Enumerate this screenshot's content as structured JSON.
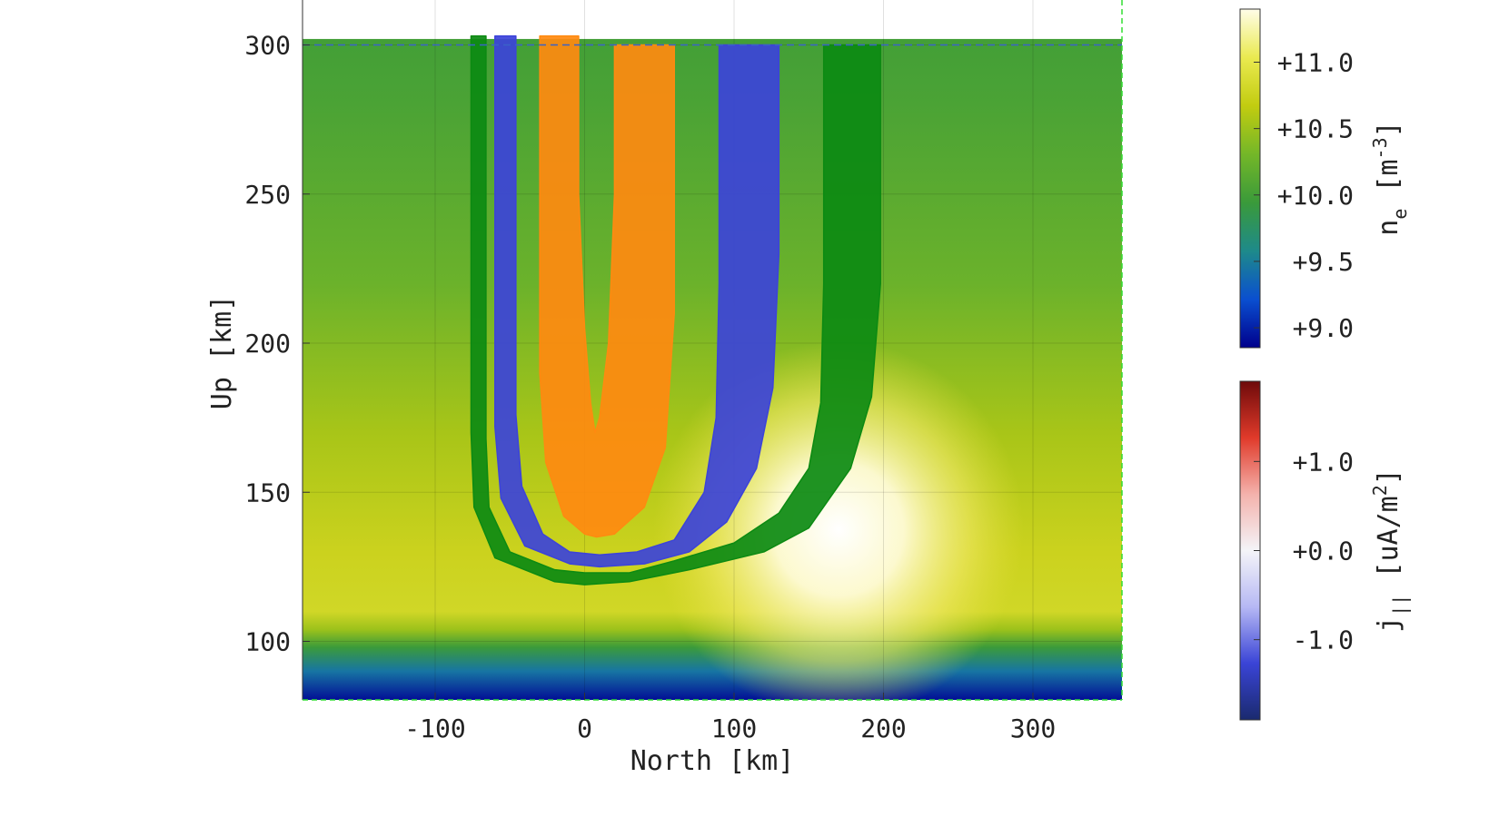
{
  "chart_data": {
    "type": "heatmap",
    "title": "",
    "xlabel": "North [km]",
    "ylabel": "Up [km]",
    "xlim": [
      -190,
      360
    ],
    "ylim": [
      80,
      315
    ],
    "x_ticks": [
      -100,
      0,
      100,
      200,
      300
    ],
    "y_ticks": [
      100,
      150,
      200,
      250,
      300
    ],
    "x_tick_labels": [
      "-100",
      "0",
      "100",
      "200",
      "300"
    ],
    "y_tick_labels": [
      "100",
      "150",
      "200",
      "250",
      "300"
    ],
    "grid": true,
    "colors": {
      "upper_boundary_line": "#3a62c8",
      "domain_edge_line": "#33dd33",
      "tube_outer_green": "#0c8a12",
      "tube_blue": "#3c43d9",
      "tube_orange": "#ff8a10",
      "tube_center_orange": "#c89a22",
      "tube_center_blue": "#7f7f8a",
      "tube_right_green": "#2a9012"
    },
    "background_field": {
      "quantity": "n_e",
      "altitude_profile_log10": [
        {
          "up": 80,
          "value": 8.9
        },
        {
          "up": 90,
          "value": 9.45
        },
        {
          "up": 98,
          "value": 9.95
        },
        {
          "up": 104,
          "value": 10.5
        },
        {
          "up": 110,
          "value": 10.8
        },
        {
          "up": 130,
          "value": 10.75
        },
        {
          "up": 170,
          "value": 10.55
        },
        {
          "up": 220,
          "value": 10.25
        },
        {
          "up": 280,
          "value": 10.05
        },
        {
          "up": 302,
          "value": 10.0
        }
      ],
      "enhancement_region": {
        "north_range": [
          40,
          240
        ],
        "up_range": [
          105,
          220
        ],
        "peak_value": 11.5
      }
    },
    "series": [
      {
        "name": "",
        "polarity": "upward current",
        "color": "#0c8a12",
        "outer_edge": {
          "north": [
            -76,
            -76,
            -74,
            -60,
            -20,
            0,
            30,
            70,
            120,
            150,
            178,
            192,
            198,
            198
          ],
          "up": [
            303,
            170,
            145,
            128,
            120,
            119,
            120,
            124,
            130,
            138,
            158,
            182,
            220,
            300
          ]
        },
        "inner_edge": {
          "north": [
            -66,
            -66,
            -64,
            -50,
            -20,
            0,
            30,
            60,
            100,
            130,
            150,
            158,
            160,
            160
          ],
          "up": [
            303,
            168,
            145,
            130,
            124,
            123,
            123,
            127,
            133,
            143,
            158,
            180,
            220,
            300
          ]
        }
      },
      {
        "name": "",
        "polarity": "downward current",
        "color": "#3c43d9",
        "outer_edge": {
          "north": [
            -60,
            -60,
            -56,
            -40,
            -10,
            10,
            40,
            70,
            95,
            115,
            126,
            130,
            130
          ],
          "up": [
            303,
            172,
            148,
            132,
            126,
            125,
            126,
            130,
            140,
            158,
            185,
            230,
            300
          ]
        },
        "inner_edge": {
          "north": [
            -46,
            -46,
            -42,
            -28,
            -10,
            10,
            35,
            60,
            80,
            88,
            90,
            90
          ],
          "up": [
            303,
            176,
            152,
            136,
            130,
            129,
            130,
            134,
            150,
            175,
            220,
            300
          ]
        }
      },
      {
        "name": "",
        "polarity": "upward current",
        "color": "#ff8a10",
        "outer_edge": {
          "north": [
            -30,
            -30,
            -26,
            -14,
            0,
            8,
            20,
            40,
            54,
            60,
            60
          ],
          "up": [
            303,
            190,
            160,
            142,
            136,
            135,
            136,
            145,
            165,
            210,
            300
          ]
        },
        "inner_edge": {
          "north": [
            -4,
            -4,
            0,
            4,
            7,
            10,
            16,
            20,
            20
          ],
          "up": [
            303,
            250,
            205,
            180,
            170,
            175,
            200,
            250,
            300
          ]
        }
      }
    ],
    "colorbars": [
      {
        "label_main": "n",
        "label_sub": "e",
        "label_unit_open": " [m",
        "label_sup": "-3",
        "label_unit_close": "]",
        "scale": "log10",
        "range": [
          8.85,
          11.4
        ],
        "ticks": [
          9.0,
          9.5,
          10.0,
          10.5,
          11.0
        ],
        "tick_labels": [
          "+9.0",
          "+9.5",
          "+10.0",
          "+10.5",
          "+11.0"
        ],
        "colormap": [
          "#00008c",
          "#0a4fd0",
          "#1e8a8a",
          "#3a9a3a",
          "#74b728",
          "#c2cc10",
          "#eaea50",
          "#fffde8"
        ]
      },
      {
        "label_main": "j",
        "label_sub": "||",
        "label_unit_open": " [uA/m",
        "label_sup": "2",
        "label_unit_close": "]",
        "scale": "linear",
        "range": [
          -1.9,
          1.9
        ],
        "ticks": [
          -1.0,
          0.0,
          1.0
        ],
        "tick_labels": [
          "-1.0",
          "+0.0",
          "+1.0"
        ],
        "colormap": [
          "#1a2a6e",
          "#3a44d6",
          "#b6b8f4",
          "#f4f4f8",
          "#f4b2ac",
          "#e03a2a",
          "#6e0a0a"
        ]
      }
    ]
  }
}
